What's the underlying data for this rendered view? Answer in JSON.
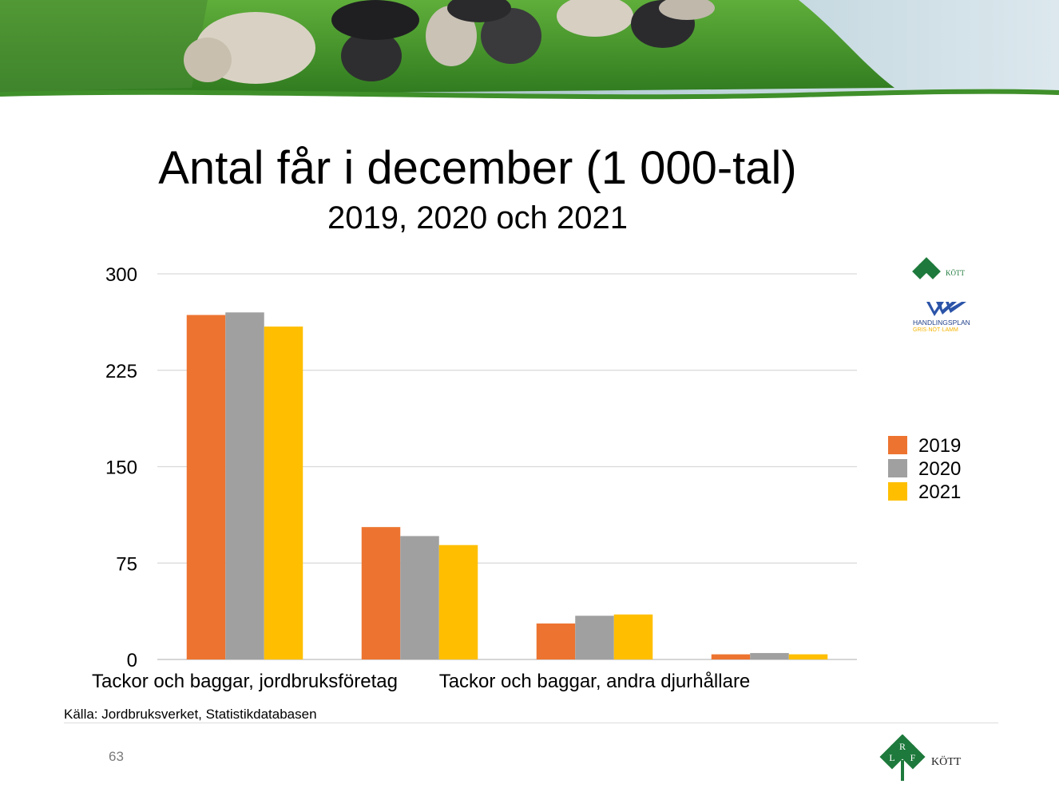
{
  "slide": {
    "page_number": "63",
    "source": "Källa: Jordbruksverket, Statistikdatabasen"
  },
  "logos": {
    "lrf_letters": [
      "L",
      "R",
      "F"
    ],
    "kott_label": "KÖTT",
    "handlingsplan_label": "HANDLINGSPLAN",
    "handlingsplan_sub": "GRIS·NÖT·LAMM"
  },
  "colors": {
    "series_2019": "#ED7430",
    "series_2020": "#A0A0A0",
    "series_2021": "#FFBF00",
    "logo_green": "#1E7A3C",
    "logo_blue": "#2B54A8",
    "logo_yellow": "#F4B400",
    "grass": "#3f8f2a",
    "sky_water": "#cfe0ea"
  },
  "chart_data": {
    "type": "bar",
    "title": "Antal får i december (1 000-tal)",
    "subtitle": "2019, 2020 och 2021",
    "categories": [
      "Tackor och baggar, jordbruksföretag",
      "",
      "Tackor och baggar, andra djurhållare",
      ""
    ],
    "series": [
      {
        "name": "2019",
        "values": [
          268,
          103,
          28,
          4
        ]
      },
      {
        "name": "2020",
        "values": [
          270,
          96,
          34,
          5
        ]
      },
      {
        "name": "2021",
        "values": [
          259,
          89,
          35,
          4
        ]
      }
    ],
    "xlabel": "",
    "ylabel": "",
    "ylim": [
      0,
      300
    ],
    "yticks": [
      0,
      75,
      150,
      225,
      300
    ],
    "grid": true,
    "legend": "right"
  }
}
